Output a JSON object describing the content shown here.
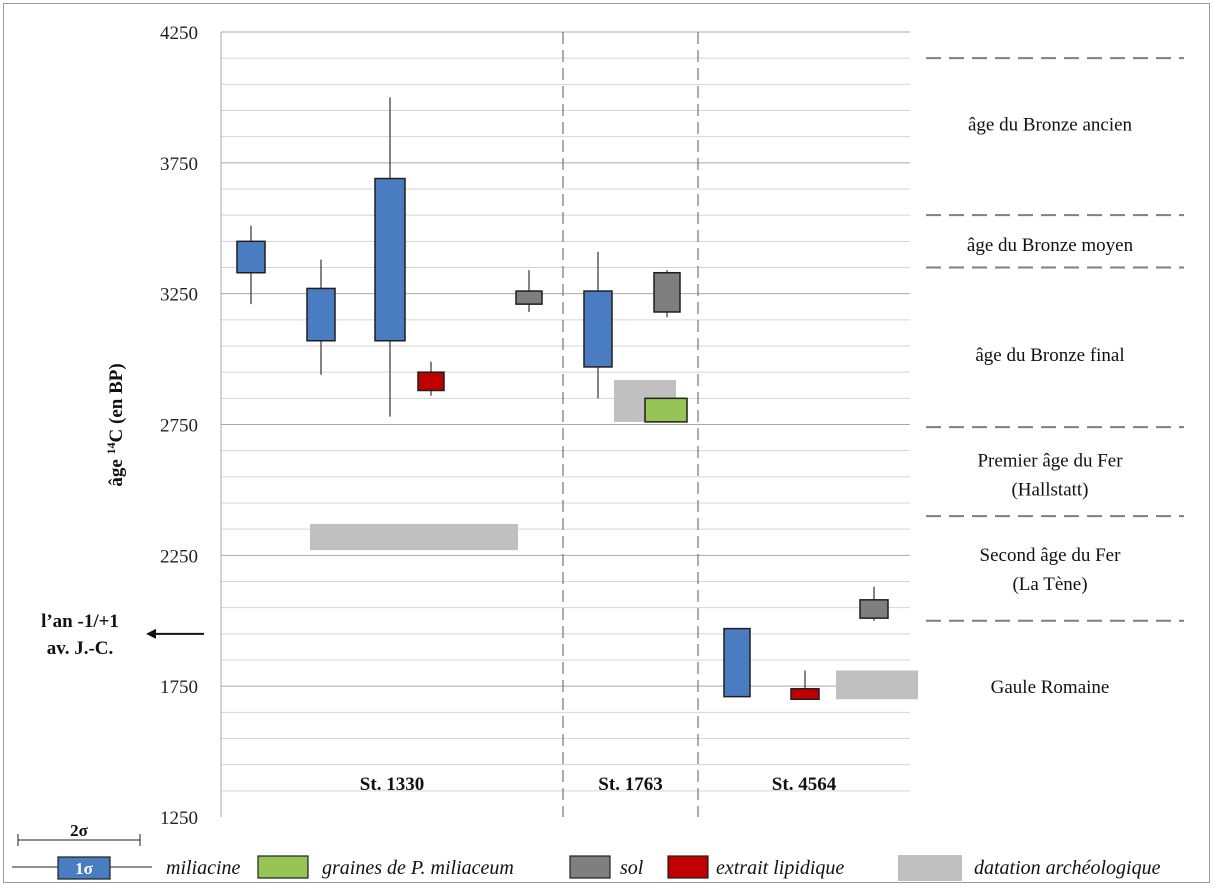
{
  "chart_data": {
    "type": "box",
    "ylabel_prefix": "âge ",
    "ylabel_sup": "14",
    "ylabel_suffix": "C (en BP)",
    "ylim": [
      1250,
      4250
    ],
    "yticks": [
      1250,
      1750,
      2250,
      2750,
      3250,
      3750,
      4250
    ],
    "minor_step": 100,
    "grid": true,
    "era_marker": {
      "line1": "l’an -1/+1",
      "line2": "av. J.-C.",
      "value": 1950
    },
    "sections": [
      {
        "label": "St. 1330"
      },
      {
        "label": "St. 1763"
      },
      {
        "label": "St. 4564"
      }
    ],
    "periods": [
      {
        "label": [
          "âge du Bronze ancien"
        ],
        "boundary": 4150,
        "center": 3900
      },
      {
        "label": [
          "âge du Bronze moyen"
        ],
        "boundary": 3550,
        "center": 3440
      },
      {
        "label": [
          "âge du Bronze final"
        ],
        "boundary": 3350,
        "center": 3020
      },
      {
        "label": [
          "Premier âge du Fer",
          "(Hallstatt)"
        ],
        "boundary": 2740,
        "center": 2560
      },
      {
        "label": [
          "Second âge du Fer",
          "(La Tène)"
        ],
        "boundary": 2400,
        "center": 2200
      },
      {
        "label": [
          "Gaule Romaine"
        ],
        "boundary": 2000,
        "center": 1750
      }
    ],
    "series": [
      {
        "section": "St. 1330",
        "type": "miliacine",
        "low2": 3210,
        "low1": 3330,
        "high1": 3450,
        "high2": 3510
      },
      {
        "section": "St. 1330",
        "type": "miliacine",
        "low2": 2940,
        "low1": 3070,
        "high1": 3270,
        "high2": 3380
      },
      {
        "section": "St. 1330",
        "type": "miliacine",
        "low2": 2780,
        "low1": 3070,
        "high1": 3690,
        "high2": 4000
      },
      {
        "section": "St. 1330",
        "type": "extrait lipidique",
        "low2": 2860,
        "low1": 2880,
        "high1": 2950,
        "high2": 2990
      },
      {
        "section": "St. 1330",
        "type": "sol",
        "low2": 3180,
        "low1": 3210,
        "high1": 3260,
        "high2": 3340
      },
      {
        "section": "St. 1763",
        "type": "miliacine",
        "low2": 2850,
        "low1": 2970,
        "high1": 3260,
        "high2": 3410
      },
      {
        "section": "St. 1763",
        "type": "sol",
        "low2": 3160,
        "low1": 3180,
        "high1": 3330,
        "high2": 3340
      },
      {
        "section": "St. 1763",
        "type": "graines de P. miliaceum",
        "low2": 2760,
        "low1": 2760,
        "high1": 2850,
        "high2": 2850
      },
      {
        "section": "St. 4564",
        "type": "miliacine",
        "low2": 1710,
        "low1": 1710,
        "high1": 1970,
        "high2": 1970
      },
      {
        "section": "St. 4564",
        "type": "extrait lipidique",
        "low2": 1700,
        "low1": 1700,
        "high1": 1740,
        "high2": 1810
      },
      {
        "section": "St. 4564",
        "type": "sol",
        "low2": 2000,
        "low1": 2010,
        "high1": 2080,
        "high2": 2130
      }
    ],
    "archaeological_dating": [
      {
        "section": "St. 1330",
        "low": 2270,
        "high": 2370
      },
      {
        "section": "St. 1763",
        "low": 2760,
        "high": 2920
      },
      {
        "section": "St. 4564",
        "low": 1700,
        "high": 1810
      }
    ],
    "legend": {
      "sigma2": "2σ",
      "sigma1": "1σ",
      "items": [
        {
          "label": "miliacine",
          "color": "#4a7cc1"
        },
        {
          "label": "graines de P. miliaceum",
          "color": "#97c457"
        },
        {
          "label": "sol",
          "color": "#7f7f7f"
        },
        {
          "label": "extrait lipidique",
          "color": "#c00000"
        },
        {
          "label": "datation archéologique",
          "color": "#c0c0c0"
        }
      ]
    }
  }
}
